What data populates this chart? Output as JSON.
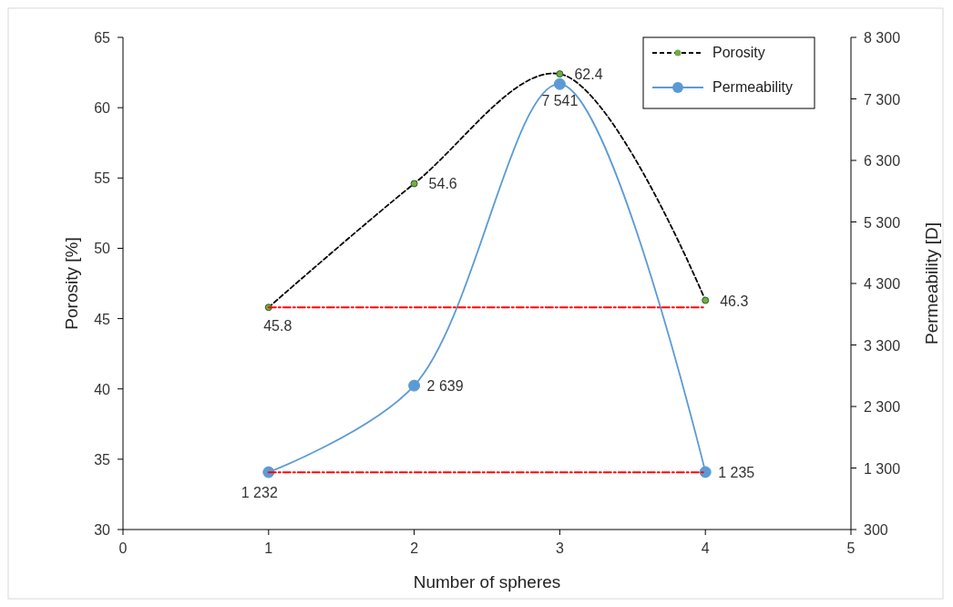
{
  "chart_data": {
    "type": "line",
    "xlabel": "Number of spheres",
    "ylabel": "Porosity [%]",
    "y2label": "Permeability [D]",
    "xlim": [
      0,
      5
    ],
    "xticks": [
      0,
      1,
      2,
      3,
      4,
      5
    ],
    "ylim": [
      30,
      65
    ],
    "yticks": [
      30,
      35,
      40,
      45,
      50,
      55,
      60,
      65
    ],
    "y2lim": [
      300,
      8300
    ],
    "y2ticks": [
      {
        "value": 300,
        "label": "300"
      },
      {
        "value": 1300,
        "label": "1 300"
      },
      {
        "value": 2300,
        "label": "2 300"
      },
      {
        "value": 3300,
        "label": "3 300"
      },
      {
        "value": 4300,
        "label": "4 300"
      },
      {
        "value": 5300,
        "label": "5 300"
      },
      {
        "value": 6300,
        "label": "6 300"
      },
      {
        "value": 7300,
        "label": "7 300"
      },
      {
        "value": 8300,
        "label": "8 300"
      }
    ],
    "legend": "top right",
    "grid": false,
    "series": [
      {
        "name": "Porosity",
        "color": "#000000",
        "x": [
          1,
          2,
          3,
          4
        ],
        "values": [
          45.8,
          54.6,
          62.4,
          46.3
        ],
        "value_labels": [
          "45.8",
          "54.6",
          "62.4",
          "46.3"
        ],
        "marker": "circle",
        "line_style": "dashed",
        "axis": "y"
      },
      {
        "name": "Permeability",
        "color": "#5b9bd5",
        "x": [
          1,
          2,
          3,
          4
        ],
        "values": [
          1232,
          2639,
          7541,
          1235
        ],
        "value_labels": [
          "1 232",
          "2 639",
          "7 541",
          "1 235"
        ],
        "marker": "circle",
        "line_style": "solid",
        "axis": "y2"
      },
      {
        "color": "#ff0000",
        "x": [
          1,
          4
        ],
        "values": [
          45.8,
          45.8
        ],
        "marker": "none",
        "line_style": "dashed",
        "axis": "y"
      },
      {
        "color": "#ff0000",
        "x": [
          1,
          4
        ],
        "values": [
          1230,
          1230
        ],
        "marker": "none",
        "line_style": "dashed",
        "axis": "y2"
      }
    ]
  }
}
